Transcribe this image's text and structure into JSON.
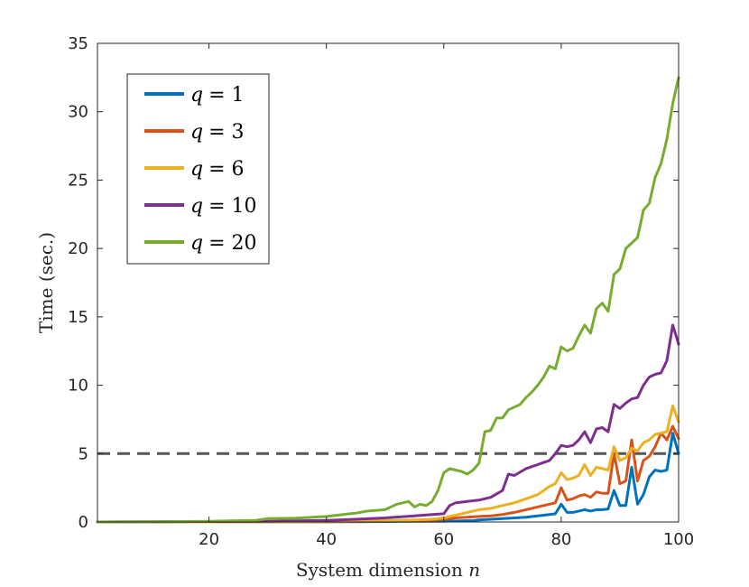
{
  "chart_data": {
    "type": "line",
    "title": "",
    "xlabel": "System dimension n",
    "xlabel_text": "System dimension ",
    "xlabel_var": "n",
    "ylabel": "Time (sec.)",
    "xlim": [
      1,
      100
    ],
    "ylim": [
      0,
      35
    ],
    "xticks": [
      20,
      40,
      60,
      80,
      100
    ],
    "yticks": [
      0,
      5,
      10,
      15,
      20,
      25,
      30,
      35
    ],
    "threshold": 5,
    "legend_location": "top-left",
    "series": [
      {
        "name": "q = 1",
        "label_var": "q",
        "label_eq": "= 1",
        "color": "#0072BD",
        "points": [
          [
            1,
            0
          ],
          [
            10,
            0
          ],
          [
            20,
            0
          ],
          [
            30,
            0.01
          ],
          [
            40,
            0.01
          ],
          [
            45,
            0.02
          ],
          [
            50,
            0.03
          ],
          [
            55,
            0.05
          ],
          [
            60,
            0.06
          ],
          [
            63,
            0.08
          ],
          [
            65,
            0.1
          ],
          [
            66,
            0.15
          ],
          [
            68,
            0.2
          ],
          [
            70,
            0.25
          ],
          [
            72,
            0.3
          ],
          [
            74,
            0.35
          ],
          [
            76,
            0.45
          ],
          [
            78,
            0.55
          ],
          [
            79,
            0.6
          ],
          [
            80,
            1.3
          ],
          [
            81,
            0.7
          ],
          [
            82,
            0.7
          ],
          [
            83,
            0.8
          ],
          [
            84,
            0.9
          ],
          [
            85,
            0.8
          ],
          [
            86,
            0.9
          ],
          [
            87,
            0.9
          ],
          [
            88,
            0.95
          ],
          [
            89,
            2.3
          ],
          [
            90,
            1.2
          ],
          [
            91,
            1.2
          ],
          [
            92,
            4
          ],
          [
            93,
            1.3
          ],
          [
            94,
            2
          ],
          [
            95,
            3.3
          ],
          [
            96,
            3.8
          ],
          [
            97,
            3.7
          ],
          [
            98,
            3.8
          ],
          [
            99,
            6.5
          ],
          [
            100,
            5
          ]
        ]
      },
      {
        "name": "q = 3",
        "label_var": "q",
        "label_eq": "= 3",
        "color": "#D95319",
        "points": [
          [
            1,
            0
          ],
          [
            10,
            0
          ],
          [
            20,
            0
          ],
          [
            30,
            0.01
          ],
          [
            40,
            0.02
          ],
          [
            45,
            0.04
          ],
          [
            50,
            0.06
          ],
          [
            55,
            0.1
          ],
          [
            58,
            0.15
          ],
          [
            60,
            0.2
          ],
          [
            62,
            0.3
          ],
          [
            64,
            0.35
          ],
          [
            66,
            0.4
          ],
          [
            68,
            0.45
          ],
          [
            70,
            0.55
          ],
          [
            72,
            0.7
          ],
          [
            74,
            0.9
          ],
          [
            76,
            1.1
          ],
          [
            78,
            1.3
          ],
          [
            79,
            1.4
          ],
          [
            80,
            2.5
          ],
          [
            81,
            1.6
          ],
          [
            82,
            1.7
          ],
          [
            83,
            1.9
          ],
          [
            84,
            2
          ],
          [
            85,
            1.8
          ],
          [
            86,
            2.2
          ],
          [
            87,
            2.1
          ],
          [
            88,
            2.1
          ],
          [
            89,
            5
          ],
          [
            90,
            2.8
          ],
          [
            91,
            3
          ],
          [
            92,
            6
          ],
          [
            93,
            3
          ],
          [
            94,
            4.5
          ],
          [
            95,
            4.8
          ],
          [
            96,
            5.5
          ],
          [
            97,
            6.5
          ],
          [
            98,
            6
          ],
          [
            99,
            7
          ],
          [
            100,
            6.1
          ]
        ]
      },
      {
        "name": "q = 6",
        "label_var": "q",
        "label_eq": "= 6",
        "color": "#EDB120",
        "points": [
          [
            1,
            0
          ],
          [
            10,
            0
          ],
          [
            20,
            0
          ],
          [
            30,
            0.02
          ],
          [
            40,
            0.04
          ],
          [
            45,
            0.06
          ],
          [
            50,
            0.1
          ],
          [
            55,
            0.15
          ],
          [
            58,
            0.2
          ],
          [
            60,
            0.3
          ],
          [
            62,
            0.5
          ],
          [
            64,
            0.7
          ],
          [
            66,
            0.9
          ],
          [
            68,
            1
          ],
          [
            70,
            1.2
          ],
          [
            72,
            1.4
          ],
          [
            74,
            1.7
          ],
          [
            76,
            2
          ],
          [
            78,
            2.6
          ],
          [
            79,
            2.8
          ],
          [
            80,
            3.6
          ],
          [
            81,
            3.1
          ],
          [
            82,
            3.2
          ],
          [
            83,
            3.4
          ],
          [
            84,
            4.2
          ],
          [
            85,
            3.4
          ],
          [
            86,
            4
          ],
          [
            87,
            3.9
          ],
          [
            88,
            3.8
          ],
          [
            89,
            5.5
          ],
          [
            90,
            4.5
          ],
          [
            91,
            4.7
          ],
          [
            92,
            5.4
          ],
          [
            93,
            5.2
          ],
          [
            94,
            5.8
          ],
          [
            95,
            6
          ],
          [
            96,
            6.4
          ],
          [
            97,
            6.5
          ],
          [
            98,
            6.6
          ],
          [
            99,
            8.5
          ],
          [
            100,
            7.3
          ]
        ]
      },
      {
        "name": "q = 10",
        "label_var": "q",
        "label_eq": "= 10",
        "color": "#7E2F8E",
        "points": [
          [
            1,
            0
          ],
          [
            10,
            0.02
          ],
          [
            20,
            0.03
          ],
          [
            30,
            0.05
          ],
          [
            40,
            0.12
          ],
          [
            45,
            0.2
          ],
          [
            50,
            0.3
          ],
          [
            55,
            0.45
          ],
          [
            58,
            0.55
          ],
          [
            60,
            0.6
          ],
          [
            61,
            1.2
          ],
          [
            62,
            1.4
          ],
          [
            64,
            1.5
          ],
          [
            66,
            1.6
          ],
          [
            68,
            1.8
          ],
          [
            70,
            2.3
          ],
          [
            71,
            3.5
          ],
          [
            72,
            3.4
          ],
          [
            74,
            3.9
          ],
          [
            76,
            4.2
          ],
          [
            78,
            4.5
          ],
          [
            79,
            5
          ],
          [
            80,
            5.6
          ],
          [
            81,
            5.5
          ],
          [
            82,
            5.6
          ],
          [
            83,
            6
          ],
          [
            84,
            6.6
          ],
          [
            85,
            5.8
          ],
          [
            86,
            6.8
          ],
          [
            87,
            6.9
          ],
          [
            88,
            6.6
          ],
          [
            89,
            8.6
          ],
          [
            90,
            8.3
          ],
          [
            91,
            8.7
          ],
          [
            92,
            9
          ],
          [
            93,
            9.1
          ],
          [
            94,
            10
          ],
          [
            95,
            10.6
          ],
          [
            96,
            10.8
          ],
          [
            97,
            10.9
          ],
          [
            98,
            11.8
          ],
          [
            99,
            14.4
          ],
          [
            100,
            13
          ]
        ]
      },
      {
        "name": "q = 20",
        "label_var": "q",
        "label_eq": "= 20",
        "color": "#77AC30",
        "points": [
          [
            1,
            0
          ],
          [
            10,
            0.02
          ],
          [
            20,
            0.05
          ],
          [
            28,
            0.12
          ],
          [
            30,
            0.25
          ],
          [
            35,
            0.28
          ],
          [
            40,
            0.4
          ],
          [
            44,
            0.6
          ],
          [
            45,
            0.65
          ],
          [
            47,
            0.8
          ],
          [
            50,
            0.9
          ],
          [
            52,
            1.3
          ],
          [
            54,
            1.5
          ],
          [
            55,
            1.1
          ],
          [
            56,
            1.3
          ],
          [
            57,
            1.2
          ],
          [
            58,
            1.5
          ],
          [
            59,
            2.3
          ],
          [
            60,
            3.6
          ],
          [
            61,
            3.9
          ],
          [
            62,
            3.8
          ],
          [
            63,
            3.7
          ],
          [
            64,
            3.5
          ],
          [
            65,
            3.8
          ],
          [
            66,
            4.3
          ],
          [
            67,
            6.6
          ],
          [
            68,
            6.7
          ],
          [
            69,
            7.6
          ],
          [
            70,
            7.6
          ],
          [
            71,
            8.2
          ],
          [
            72,
            8.4
          ],
          [
            73,
            8.6
          ],
          [
            74,
            9.1
          ],
          [
            75,
            9.5
          ],
          [
            76,
            10
          ],
          [
            77,
            10.6
          ],
          [
            78,
            11.4
          ],
          [
            79,
            11.2
          ],
          [
            80,
            12.8
          ],
          [
            81,
            12.5
          ],
          [
            82,
            12.7
          ],
          [
            83,
            13.6
          ],
          [
            84,
            14.4
          ],
          [
            85,
            13.8
          ],
          [
            86,
            15.6
          ],
          [
            87,
            16
          ],
          [
            88,
            15.4
          ],
          [
            89,
            18.1
          ],
          [
            90,
            18.5
          ],
          [
            91,
            20
          ],
          [
            92,
            20.4
          ],
          [
            93,
            20.8
          ],
          [
            94,
            22.8
          ],
          [
            95,
            23.3
          ],
          [
            96,
            25.2
          ],
          [
            97,
            26.2
          ],
          [
            98,
            28
          ],
          [
            99,
            30.6
          ],
          [
            100,
            32.5
          ]
        ]
      }
    ]
  }
}
